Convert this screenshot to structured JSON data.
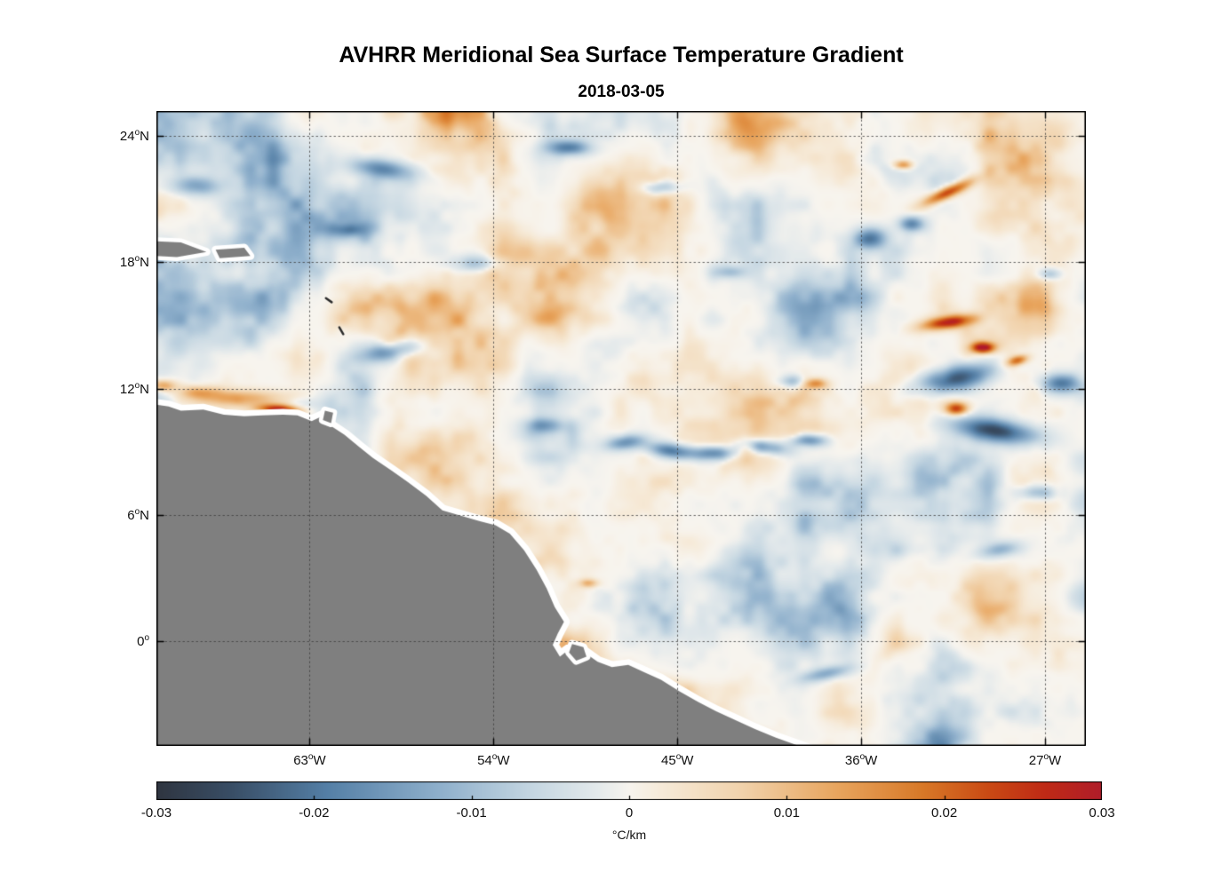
{
  "chart_data": {
    "type": "heatmap",
    "title": "AVHRR Meridional Sea Surface Temperature Gradient",
    "subtitle": "2018-03-05",
    "projection": "lon-lat",
    "lon_range": [
      -70.5,
      -25.0
    ],
    "lat_range": [
      -5.0,
      25.2
    ],
    "grid": "dotted",
    "x_ticks": [
      {
        "lon": -63,
        "num": "63",
        "dir": "W",
        "label": "63°W"
      },
      {
        "lon": -54,
        "num": "54",
        "dir": "W",
        "label": "54°W"
      },
      {
        "lon": -45,
        "num": "45",
        "dir": "W",
        "label": "45°W"
      },
      {
        "lon": -36,
        "num": "36",
        "dir": "W",
        "label": "36°W"
      },
      {
        "lon": -27,
        "num": "27",
        "dir": "W",
        "label": "27°W"
      }
    ],
    "y_ticks": [
      {
        "lat": 24,
        "num": "24",
        "dir": "N",
        "label": "24°N"
      },
      {
        "lat": 18,
        "num": "18",
        "dir": "N",
        "label": "18°N"
      },
      {
        "lat": 12,
        "num": "12",
        "dir": "N",
        "label": "12°N"
      },
      {
        "lat": 6,
        "num": "6",
        "dir": "N",
        "label": "6°N"
      },
      {
        "lat": 0,
        "num": "0",
        "dir": "",
        "label": "0°"
      }
    ],
    "colorbar": {
      "orientation": "horizontal",
      "min": -0.03,
      "max": 0.03,
      "ticks": [
        -0.03,
        -0.02,
        -0.01,
        0,
        0.01,
        0.02,
        0.03
      ],
      "tick_labels": [
        "-0.03",
        "-0.02",
        "-0.01",
        "0",
        "0.01",
        "0.02",
        "0.03"
      ],
      "label": "°C/km"
    },
    "colormap": [
      [
        0.0,
        "#2f3540"
      ],
      [
        0.08,
        "#394e66"
      ],
      [
        0.18,
        "#547fa6"
      ],
      [
        0.3,
        "#8fb0cc"
      ],
      [
        0.4,
        "#c6d7e2"
      ],
      [
        0.465,
        "#e3e9eb"
      ],
      [
        0.5,
        "#f7f4ee"
      ],
      [
        0.535,
        "#f6ead8"
      ],
      [
        0.62,
        "#f1d2ab"
      ],
      [
        0.72,
        "#e8a55e"
      ],
      [
        0.81,
        "#d87928"
      ],
      [
        0.88,
        "#ca4a14"
      ],
      [
        0.94,
        "#bf2a16"
      ],
      [
        1.0,
        "#b01d2a"
      ]
    ],
    "land_color": "#7f7f7f",
    "coast_halo_color": "#ffffff",
    "ocean_base_color": "#e7ebec",
    "land_polygon": [
      [
        -71.5,
        11.35
      ],
      [
        -69.9,
        11.15
      ],
      [
        -69.3,
        10.95
      ],
      [
        -68.2,
        11.0
      ],
      [
        -67.2,
        10.75
      ],
      [
        -66.2,
        10.68
      ],
      [
        -65.3,
        10.72
      ],
      [
        -64.3,
        10.75
      ],
      [
        -63.6,
        10.72
      ],
      [
        -62.9,
        10.45
      ],
      [
        -62.35,
        10.7
      ],
      [
        -62.0,
        10.25
      ],
      [
        -61.3,
        9.8
      ],
      [
        -60.55,
        9.2
      ],
      [
        -59.9,
        8.7
      ],
      [
        -59.0,
        8.1
      ],
      [
        -58.2,
        7.55
      ],
      [
        -57.3,
        6.9
      ],
      [
        -56.5,
        6.2
      ],
      [
        -55.6,
        5.95
      ],
      [
        -54.7,
        5.7
      ],
      [
        -53.9,
        5.5
      ],
      [
        -53.2,
        5.1
      ],
      [
        -52.5,
        4.3
      ],
      [
        -51.9,
        3.4
      ],
      [
        -51.4,
        2.5
      ],
      [
        -51.0,
        1.6
      ],
      [
        -50.55,
        0.9
      ],
      [
        -50.85,
        0.35
      ],
      [
        -51.1,
        -0.2
      ],
      [
        -50.75,
        -0.75
      ],
      [
        -50.35,
        -0.45
      ],
      [
        -50.05,
        -0.9
      ],
      [
        -49.55,
        -0.55
      ],
      [
        -48.9,
        -1.0
      ],
      [
        -48.2,
        -1.25
      ],
      [
        -47.4,
        -1.15
      ],
      [
        -46.6,
        -1.5
      ],
      [
        -45.8,
        -1.85
      ],
      [
        -44.9,
        -2.4
      ],
      [
        -44.0,
        -2.9
      ],
      [
        -43.1,
        -3.35
      ],
      [
        -42.2,
        -3.75
      ],
      [
        -41.2,
        -4.2
      ],
      [
        -40.2,
        -4.6
      ],
      [
        -39.2,
        -4.95
      ],
      [
        -38.2,
        -5.3
      ],
      [
        -37.4,
        -5.6
      ],
      [
        -71.5,
        -5.6
      ]
    ],
    "islands": [
      [
        [
          -71.5,
          19.05
        ],
        [
          -69.3,
          18.95
        ],
        [
          -68.05,
          18.5
        ],
        [
          -69.5,
          18.25
        ],
        [
          -71.5,
          18.35
        ]
      ],
      [
        [
          -67.6,
          18.6
        ],
        [
          -66.2,
          18.7
        ],
        [
          -65.9,
          18.3
        ],
        [
          -67.4,
          18.2
        ]
      ],
      [
        [
          -62.25,
          10.95
        ],
        [
          -61.85,
          10.85
        ],
        [
          -61.95,
          10.35
        ],
        [
          -62.35,
          10.5
        ]
      ],
      [
        [
          -50.15,
          -0.15
        ],
        [
          -49.6,
          -0.3
        ],
        [
          -49.45,
          -0.75
        ],
        [
          -49.95,
          -0.95
        ],
        [
          -50.3,
          -0.55
        ]
      ]
    ],
    "island_marks": [
      {
        "lon": -62.06,
        "lat": 16.2,
        "len": 8,
        "rot": 35
      },
      {
        "lon": -61.45,
        "lat": 14.75,
        "len": 9,
        "rot": 60
      }
    ],
    "features": [
      {
        "lon": -70.3,
        "lat": 12.2,
        "rx": 0.7,
        "ry": 0.28,
        "rot": 0,
        "val": 0.016
      },
      {
        "lon": -66.6,
        "lat": 11.6,
        "rx": 2.4,
        "ry": 0.4,
        "rot": 0,
        "val": 0.013
      },
      {
        "lon": -64.5,
        "lat": 11.05,
        "rx": 1.05,
        "ry": 0.24,
        "rot": 3,
        "val": 0.03
      },
      {
        "lon": -68.5,
        "lat": 11.9,
        "rx": 0.9,
        "ry": 0.3,
        "rot": 0,
        "val": 0.011
      },
      {
        "lon": -31.8,
        "lat": 21.4,
        "rx": 1.3,
        "ry": 0.28,
        "rot": -25,
        "val": 0.026
      },
      {
        "lon": -34.0,
        "lat": 22.7,
        "rx": 0.45,
        "ry": 0.2,
        "rot": 0,
        "val": 0.016
      },
      {
        "lon": -31.8,
        "lat": 15.2,
        "rx": 1.3,
        "ry": 0.3,
        "rot": -8,
        "val": 0.026
      },
      {
        "lon": -30.1,
        "lat": 14.0,
        "rx": 0.55,
        "ry": 0.25,
        "rot": 0,
        "val": 0.03
      },
      {
        "lon": -28.4,
        "lat": 13.4,
        "rx": 0.5,
        "ry": 0.22,
        "rot": -15,
        "val": 0.02
      },
      {
        "lon": -31.4,
        "lat": 11.1,
        "rx": 0.55,
        "ry": 0.3,
        "rot": 0,
        "val": 0.024
      },
      {
        "lon": -38.3,
        "lat": 12.3,
        "rx": 0.55,
        "ry": 0.25,
        "rot": 0,
        "val": 0.016
      },
      {
        "lon": -49.4,
        "lat": 2.8,
        "rx": 0.45,
        "ry": 0.2,
        "rot": 0,
        "val": 0.012
      },
      {
        "lon": -57.3,
        "lat": 4.1,
        "rx": 0.6,
        "ry": 0.25,
        "rot": 0,
        "val": 0.01
      },
      {
        "lon": -59.5,
        "lat": 22.5,
        "rx": 1.5,
        "ry": 0.45,
        "rot": 8,
        "val": -0.018
      },
      {
        "lon": -68.6,
        "lat": 21.7,
        "rx": 1.2,
        "ry": 0.45,
        "rot": 0,
        "val": -0.013
      },
      {
        "lon": -50.3,
        "lat": 23.5,
        "rx": 1.0,
        "ry": 0.35,
        "rot": 0,
        "val": -0.017
      },
      {
        "lon": -45.9,
        "lat": 21.6,
        "rx": 1.0,
        "ry": 0.35,
        "rot": 0,
        "val": -0.014
      },
      {
        "lon": -54.7,
        "lat": 18.0,
        "rx": 1.3,
        "ry": 0.4,
        "rot": 0,
        "val": -0.011
      },
      {
        "lon": -61.2,
        "lat": 19.6,
        "rx": 0.8,
        "ry": 0.3,
        "rot": 0,
        "val": -0.01
      },
      {
        "lon": -59.2,
        "lat": 13.8,
        "rx": 1.5,
        "ry": 0.45,
        "rot": -8,
        "val": -0.017
      },
      {
        "lon": -51.6,
        "lat": 10.3,
        "rx": 1.0,
        "ry": 0.35,
        "rot": 0,
        "val": -0.012
      },
      {
        "lon": -47.6,
        "lat": 9.5,
        "rx": 1.0,
        "ry": 0.35,
        "rot": -8,
        "val": -0.016
      },
      {
        "lon": -45.4,
        "lat": 9.1,
        "rx": 1.1,
        "ry": 0.35,
        "rot": 8,
        "val": -0.019
      },
      {
        "lon": -43.2,
        "lat": 9.0,
        "rx": 1.2,
        "ry": 0.35,
        "rot": 0,
        "val": -0.019
      },
      {
        "lon": -40.8,
        "lat": 9.3,
        "rx": 1.1,
        "ry": 0.35,
        "rot": 8,
        "val": -0.021
      },
      {
        "lon": -38.6,
        "lat": 9.6,
        "rx": 0.9,
        "ry": 0.3,
        "rot": 0,
        "val": -0.018
      },
      {
        "lon": -39.4,
        "lat": 12.4,
        "rx": 0.7,
        "ry": 0.3,
        "rot": 0,
        "val": -0.011
      },
      {
        "lon": -35.6,
        "lat": 19.2,
        "rx": 0.8,
        "ry": 0.5,
        "rot": 0,
        "val": -0.02
      },
      {
        "lon": -33.6,
        "lat": 19.9,
        "rx": 0.6,
        "ry": 0.35,
        "rot": 0,
        "val": -0.017
      },
      {
        "lon": -31.4,
        "lat": 12.55,
        "rx": 1.8,
        "ry": 0.6,
        "rot": -12,
        "val": -0.026
      },
      {
        "lon": -29.5,
        "lat": 10.05,
        "rx": 2.0,
        "ry": 0.55,
        "rot": 8,
        "val": -0.026
      },
      {
        "lon": -26.3,
        "lat": 12.3,
        "rx": 0.9,
        "ry": 0.45,
        "rot": 0,
        "val": -0.019
      },
      {
        "lon": -26.8,
        "lat": 17.5,
        "rx": 0.6,
        "ry": 0.3,
        "rot": 0,
        "val": -0.012
      },
      {
        "lon": -27.4,
        "lat": 7.1,
        "rx": 0.9,
        "ry": 0.35,
        "rot": 0,
        "val": -0.013
      },
      {
        "lon": -29.3,
        "lat": 4.4,
        "rx": 1.0,
        "ry": 0.35,
        "rot": -10,
        "val": -0.011
      },
      {
        "lon": -37.8,
        "lat": -1.5,
        "rx": 1.3,
        "ry": 0.32,
        "rot": -12,
        "val": -0.013
      },
      {
        "lon": -42.5,
        "lat": 17.6,
        "rx": 0.8,
        "ry": 0.3,
        "rot": 0,
        "val": -0.009
      }
    ],
    "noise": {
      "octaves": [
        {
          "scale": 110,
          "amp": 1.0,
          "seed": 11
        },
        {
          "scale": 55,
          "amp": 0.55,
          "seed": 23
        },
        {
          "scale": 26,
          "amp": 0.3,
          "seed": 37
        },
        {
          "scale": 13,
          "amp": 0.15,
          "seed": 53
        }
      ],
      "norm": 1.1,
      "shape_pow": 1.7,
      "amplitude": 0.012
    }
  }
}
